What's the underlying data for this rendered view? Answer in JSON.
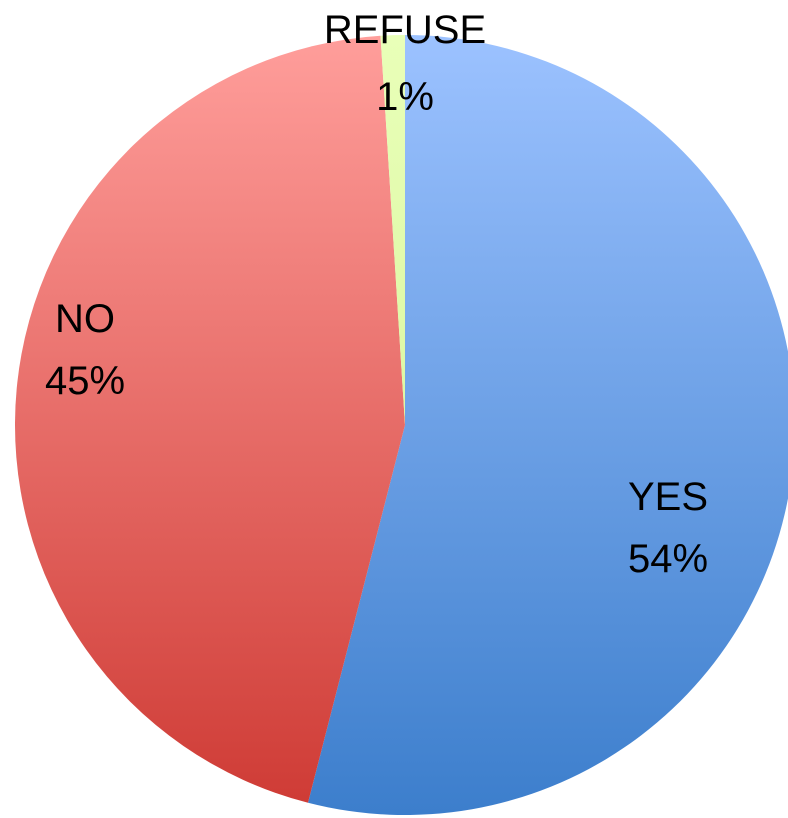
{
  "chart_data": {
    "type": "pie",
    "title": "",
    "slices": [
      {
        "label": "YES",
        "value": 54,
        "value_label": "54%",
        "color_light": "#9cc2ff",
        "color_dark": "#3c7ecc"
      },
      {
        "label": "NO",
        "value": 45,
        "value_label": "45%",
        "color_light": "#ff9e9b",
        "color_dark": "#ce3a34"
      },
      {
        "label": "REFUSE",
        "value": 1,
        "value_label": "1%",
        "color_light": "#e9ffb8",
        "color_dark": "#cff090"
      }
    ],
    "start_angle": "top",
    "direction": "clockwise",
    "legend": "none"
  }
}
